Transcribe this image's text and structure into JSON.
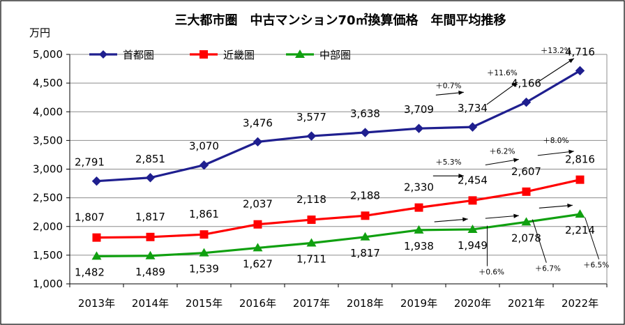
{
  "chart_data": {
    "type": "line",
    "title": "三大都市圏　中古マンション70㎡換算価格　年間平均推移",
    "ylabel": "万円",
    "xlabel": "",
    "ylim": [
      1000,
      5000
    ],
    "yticks": [
      1000,
      1500,
      2000,
      2500,
      3000,
      3500,
      4000,
      4500,
      5000
    ],
    "ytick_labels": [
      "1,000",
      "1,500",
      "2,000",
      "2,500",
      "3,000",
      "3,500",
      "4,000",
      "4,500",
      "5,000"
    ],
    "categories": [
      "2013年",
      "2014年",
      "2015年",
      "2016年",
      "2017年",
      "2018年",
      "2019年",
      "2020年",
      "2021年",
      "2022年"
    ],
    "grid": "horizontal",
    "legend_position": "top-left",
    "series": [
      {
        "name": "首都圏",
        "color": "#1f1f8f",
        "marker": "diamond",
        "values": [
          2791,
          2851,
          3070,
          3476,
          3577,
          3638,
          3709,
          3734,
          4166,
          4716
        ],
        "labels": [
          "2,791",
          "2,851",
          "3,070",
          "3,476",
          "3,577",
          "3,638",
          "3,709",
          "3,734",
          "4,166",
          "4,716"
        ]
      },
      {
        "name": "近畿圏",
        "color": "#ff0000",
        "marker": "square",
        "values": [
          1807,
          1817,
          1861,
          2037,
          2118,
          2188,
          2330,
          2454,
          2607,
          2816
        ],
        "labels": [
          "1,807",
          "1,817",
          "1,861",
          "2,037",
          "2,118",
          "2,188",
          "2,330",
          "2,454",
          "2,607",
          "2,816"
        ]
      },
      {
        "name": "中部圏",
        "color": "#10a010",
        "marker": "triangle",
        "values": [
          1482,
          1489,
          1539,
          1627,
          1711,
          1817,
          1938,
          1949,
          2078,
          2214
        ],
        "labels": [
          "1,482",
          "1,489",
          "1,539",
          "1,627",
          "1,711",
          "1,817",
          "1,938",
          "1,949",
          "2,078",
          "2,214"
        ]
      }
    ],
    "annotations": [
      {
        "series": "首都圏",
        "text": "＋0.7%"
      },
      {
        "series": "首都圏",
        "text": "＋11.6%"
      },
      {
        "series": "首都圏",
        "text": "＋13.2%"
      },
      {
        "series": "近畿圏",
        "text": "＋5.3%"
      },
      {
        "series": "近畿圏",
        "text": "＋6.2%"
      },
      {
        "series": "近畿圏",
        "text": "＋8.0%"
      },
      {
        "series": "中部圏",
        "text": "＋0.6%"
      },
      {
        "series": "中部圏",
        "text": "＋6.7%"
      },
      {
        "series": "中部圏",
        "text": "＋6.5%"
      }
    ]
  }
}
